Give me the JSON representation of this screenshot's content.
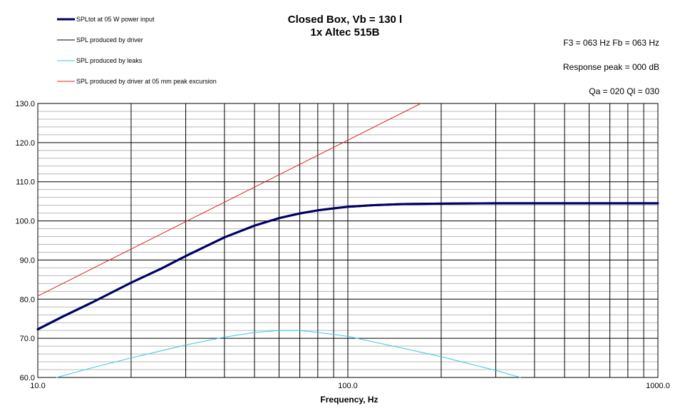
{
  "chart_data": {
    "type": "line",
    "title_line1": "Closed Box, Vb = 130 l",
    "title_line2": "1x Altec 515B",
    "xlabel": "Frequency, Hz",
    "ylabel": "",
    "x_scale": "log",
    "xlim": [
      10,
      1000
    ],
    "ylim": [
      60,
      130
    ],
    "x_ticks": [
      "10.0",
      "100.0",
      "1000.0"
    ],
    "y_ticks": [
      "60.0",
      "70.0",
      "80.0",
      "90.0",
      "100.0",
      "110.0",
      "120.0",
      "130.0"
    ],
    "y_tick_values": [
      60,
      70,
      80,
      90,
      100,
      110,
      120,
      130
    ],
    "grid": true,
    "legend_position": "top-left",
    "info": {
      "f3_fb": "F3 = 063 Hz  Fb = 063 Hz",
      "response_peak": "Response  peak = 000 dB",
      "qa_ql": "Qa = 020  Ql = 030"
    },
    "series": [
      {
        "name": "SPLtot at 05 W power input",
        "color": "#000066",
        "width": 3,
        "points": [
          [
            10,
            72.3
          ],
          [
            12,
            75.5
          ],
          [
            15,
            79.2
          ],
          [
            20,
            84.2
          ],
          [
            25,
            87.8
          ],
          [
            30,
            91
          ],
          [
            40,
            95.8
          ],
          [
            50,
            98.8
          ],
          [
            60,
            100.7
          ],
          [
            70,
            101.9
          ],
          [
            80,
            102.7
          ],
          [
            90,
            103.2
          ],
          [
            100,
            103.6
          ],
          [
            120,
            104.0
          ],
          [
            150,
            104.3
          ],
          [
            200,
            104.4
          ],
          [
            300,
            104.5
          ],
          [
            500,
            104.5
          ],
          [
            1000,
            104.5
          ]
        ]
      },
      {
        "name": "SPL produced by driver",
        "color": "#000000",
        "width": 1,
        "points": [
          [
            10,
            72.3
          ],
          [
            12,
            75.5
          ],
          [
            15,
            79.2
          ],
          [
            20,
            84.2
          ],
          [
            25,
            87.8
          ],
          [
            30,
            91
          ],
          [
            40,
            95.8
          ],
          [
            50,
            98.8
          ],
          [
            60,
            100.7
          ],
          [
            70,
            101.9
          ],
          [
            80,
            102.7
          ],
          [
            90,
            103.2
          ],
          [
            100,
            103.6
          ],
          [
            120,
            104.0
          ],
          [
            150,
            104.3
          ],
          [
            200,
            104.4
          ],
          [
            300,
            104.5
          ],
          [
            500,
            104.5
          ],
          [
            1000,
            104.5
          ]
        ]
      },
      {
        "name": "SPL produced by leaks",
        "color": "#33CCDD",
        "width": 1,
        "points": [
          [
            11.5,
            60
          ],
          [
            15,
            62.5
          ],
          [
            20,
            65
          ],
          [
            30,
            68.3
          ],
          [
            40,
            70.3
          ],
          [
            50,
            71.5
          ],
          [
            60,
            72
          ],
          [
            70,
            72
          ],
          [
            80,
            71.5
          ],
          [
            100,
            70.5
          ],
          [
            150,
            67.5
          ],
          [
            200,
            65.3
          ],
          [
            300,
            61.8
          ],
          [
            360,
            60
          ]
        ]
      },
      {
        "name": "SPL produced by driver at 05 mm peak excursion",
        "color": "#DD2222",
        "width": 1,
        "points": [
          [
            10,
            80.8
          ],
          [
            172,
            130
          ]
        ]
      }
    ]
  }
}
